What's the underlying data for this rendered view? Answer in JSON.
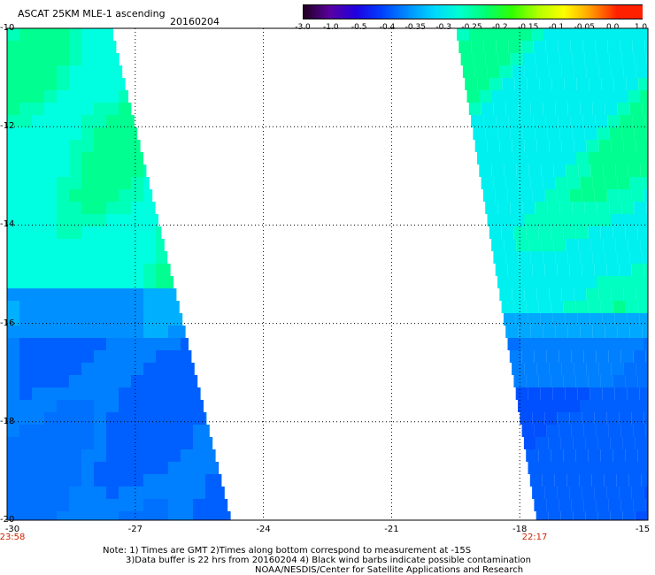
{
  "header": {
    "title": "ASCAT 25KM MLE-1 ascending",
    "date": "20160204"
  },
  "colorbar": {
    "labels": [
      "-3.0",
      "-1.0",
      "-0.5",
      "-0.4",
      "-0.35",
      "-0.3",
      "-0.25",
      "-0.2",
      "-0.15",
      "-0.1",
      "-0.05",
      "0.0",
      "1.0"
    ],
    "colors": [
      "#200020",
      "#5a00a0",
      "#2000e0",
      "#0040ff",
      "#0090ff",
      "#00d8ff",
      "#00ffd0",
      "#00ff70",
      "#30ff00",
      "#b0ff00",
      "#ffff00",
      "#ffa000",
      "#ff2000"
    ]
  },
  "map": {
    "lat_labels": [
      "-10",
      "-12",
      "-14",
      "-16",
      "-18",
      "-20"
    ],
    "lon_labels": [
      "-30",
      "-27",
      "-24",
      "-21",
      "-18",
      "-15"
    ],
    "time_labels": {
      "left": "23:58",
      "right": "22:17"
    }
  },
  "notes": {
    "line1": "Note: 1) Times are GMT 2)Times along bottom correspond to measurement at -15S",
    "line2": "3)Data buffer is 22 hrs from 20160204 4) Black wind barbs indicate possible contamination",
    "line3": "NOAA/NESDIS/Center for Satellite Applications and Research"
  }
}
